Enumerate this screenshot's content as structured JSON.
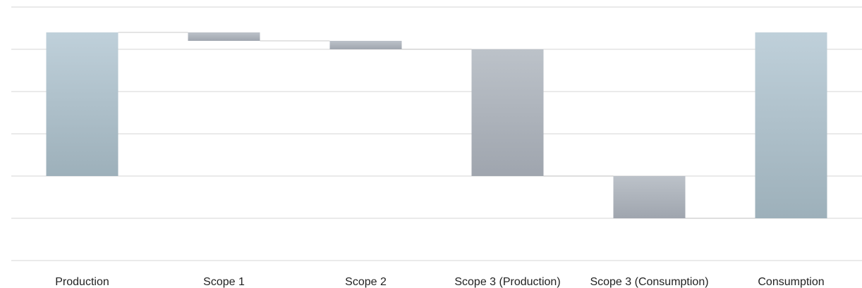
{
  "chart_data": {
    "type": "bar",
    "subtype": "waterfall",
    "title": "",
    "xlabel": "",
    "ylabel": "",
    "categories": [
      "Production",
      "Scope 1",
      "Scope 2",
      "Scope 3 (Production)",
      "Scope 3 (Consumption)",
      "Consumption"
    ],
    "bars": [
      {
        "category": "Production",
        "kind": "total",
        "start": 0,
        "end": 6.8
      },
      {
        "category": "Scope 1",
        "kind": "decrease",
        "start": 6.8,
        "end": 6.4
      },
      {
        "category": "Scope 2",
        "kind": "decrease",
        "start": 6.4,
        "end": 6.0
      },
      {
        "category": "Scope 3 (Production)",
        "kind": "decrease",
        "start": 6.0,
        "end": 0
      },
      {
        "category": "Scope 3 (Consumption)",
        "kind": "decrease",
        "start": 0,
        "end": -2.0
      },
      {
        "category": "Consumption",
        "kind": "total",
        "start": -2.0,
        "end": 6.8
      }
    ],
    "ylim": [
      -4,
      8
    ],
    "yticks": [
      -4,
      -2,
      0,
      2,
      4,
      6,
      8
    ],
    "show_y_tick_labels": false,
    "grid": true,
    "legend": "none",
    "colors": {
      "total_top": "#bfd0da",
      "total_bottom": "#9db0ba",
      "change_top": "#bcc2c9",
      "change_bottom": "#9fa5ae",
      "gridline": "#e3e3e3",
      "connector": "#d4d4d4"
    }
  }
}
